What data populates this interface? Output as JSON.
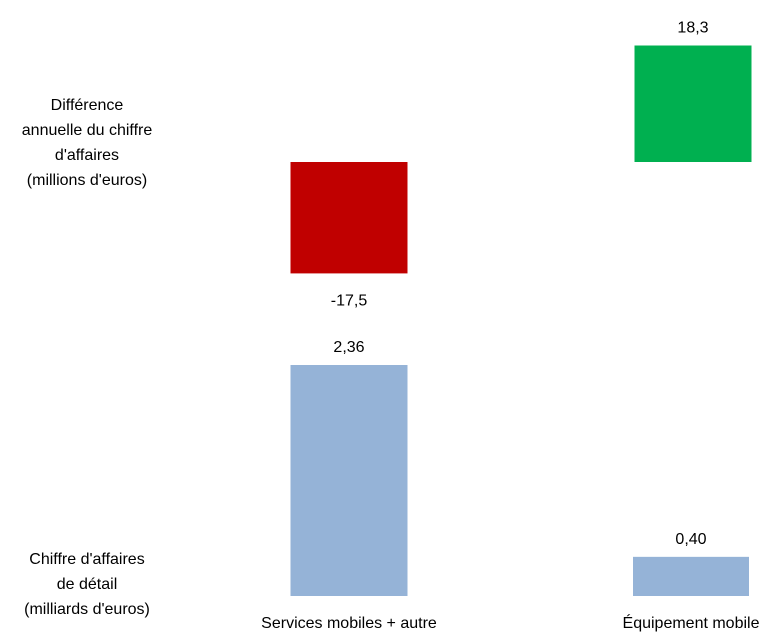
{
  "row_labels": {
    "top": [
      "Différence",
      "annuelle du chiffre",
      "d'affaires",
      "(millions d'euros)"
    ],
    "bottom": [
      "Chiffre d'affaires",
      "de détail",
      "(milliards d'euros)"
    ]
  },
  "chart_data": [
    {
      "type": "bar",
      "categories": [
        "Services mobiles + autre",
        "Équipement mobile"
      ],
      "values": [
        -17.5,
        18.3
      ],
      "value_labels": [
        "-17,5",
        "18,3"
      ],
      "bar_colors": [
        "#C00000",
        "#00B050"
      ],
      "unit": "millions d'euros"
    },
    {
      "type": "bar",
      "categories": [
        "Services mobiles + autre",
        "Équipement mobile"
      ],
      "values": [
        2.36,
        0.4
      ],
      "value_labels": [
        "2,36",
        "0,40"
      ],
      "bar_color": "#95B3D7",
      "unit": "milliards d'euros"
    }
  ]
}
